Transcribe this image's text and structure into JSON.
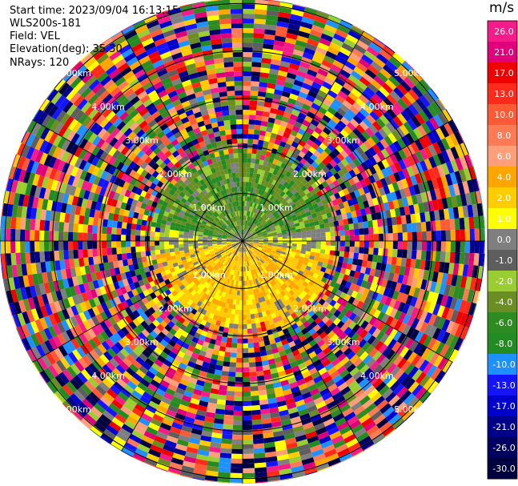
{
  "header": {
    "start_time": "Start time: 2023/09/04 16:13:15",
    "instrument": "WLS200s-181",
    "field": "Field: VEL",
    "elevation": "Elevation(deg): 35.30",
    "nrays": "NRays: 120"
  },
  "colorbar": {
    "unit": "m/s",
    "ticks": [
      "26.0",
      "21.0",
      "17.0",
      "13.0",
      "10.0",
      "8.0",
      "6.0",
      "4.0",
      "2.0",
      "1.0",
      "0.0",
      "-1.0",
      "-2.0",
      "-4.0",
      "-6.0",
      "-8.0",
      "-10.0",
      "-13.0",
      "-17.0",
      "-21.0",
      "-26.0",
      "-30.0"
    ],
    "colors": [
      "#f51c8a",
      "#e0007a",
      "#f00000",
      "#ff2a1a",
      "#ff5a36",
      "#ff7a55",
      "#ff9f7a",
      "#ffa500",
      "#ffcc00",
      "#ffff00",
      "#7f7f7f",
      "#5e5e5e",
      "#9acd32",
      "#6b8e23",
      "#2e8b22",
      "#228b22",
      "#1e90ff",
      "#1414ff",
      "#0000cd",
      "#00008b",
      "#000060",
      "#000040"
    ]
  },
  "chart_data": {
    "type": "heatmap",
    "title": "",
    "projection": "polar PPI (range rings at 1.00 km intervals)",
    "field": "VEL",
    "units": "m/s",
    "value_range": [
      -30.0,
      26.0
    ],
    "nrays": 120,
    "range_ring_labels": [
      "1.00km",
      "2.00km",
      "3.00km",
      "4.00km",
      "5.00km"
    ],
    "max_range_km": 5.3,
    "valid_data_radius_km": 2.0,
    "near_field_pattern": {
      "north_sector": "green/olive (negative, approx -4 to -8 m/s)",
      "south_sector": "yellow/orange (positive, approx 1 to 6 m/s)",
      "east_west_edges": "gray (near 0 m/s)"
    },
    "far_field_pattern": "noise: random colors across full scale beyond ~2 km"
  }
}
